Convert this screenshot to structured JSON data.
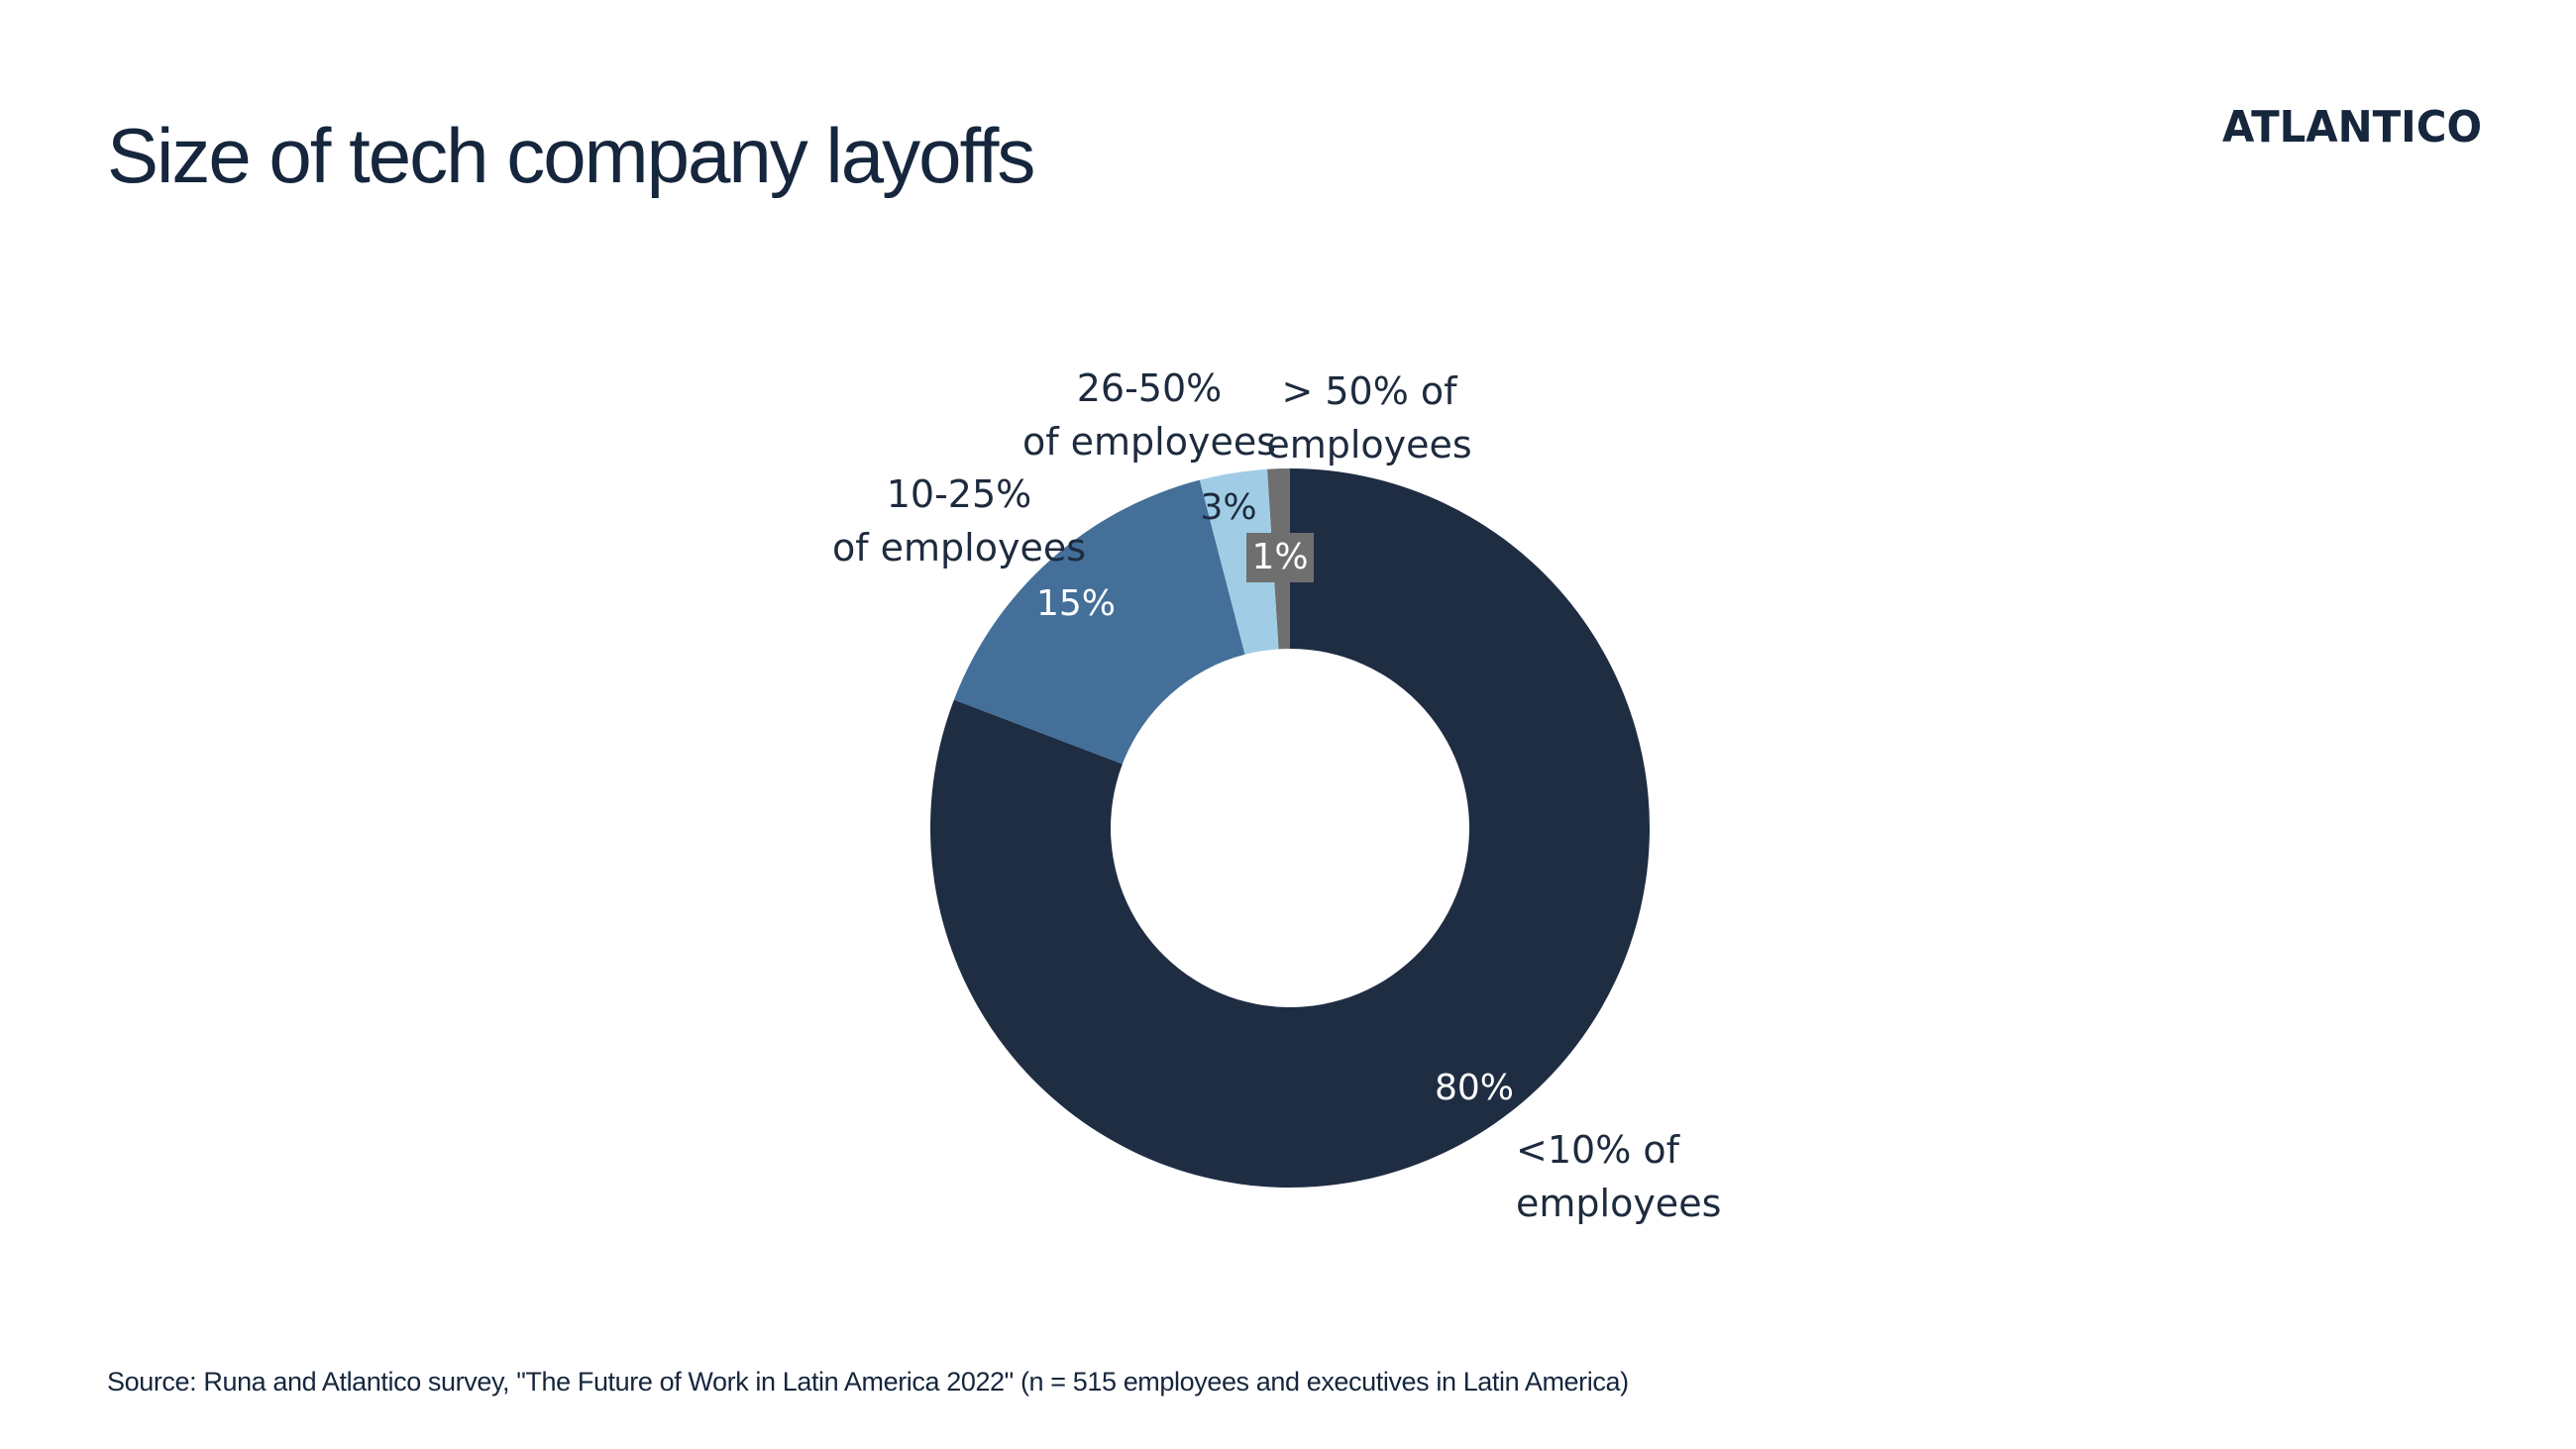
{
  "title": "Size of tech company layoffs",
  "logo_text": "ATLANTICO",
  "source": "Source: Runa and Atlantico survey, \"The Future of Work in Latin America 2022\" (n = 515 employees and executives in Latin America)",
  "colors": {
    "dark_navy": "#1f2d43",
    "steel_blue": "#436f99",
    "light_blue": "#a0cde5",
    "gray": "#6f6f6f",
    "text": "#15263d"
  },
  "chart_data": {
    "type": "pie",
    "donut": true,
    "title": "Size of tech company layoffs",
    "slices": [
      {
        "key": "gt50",
        "label_lines": [
          "> 50% of",
          "employees"
        ],
        "value": 1,
        "value_label": "1%",
        "color": "#6f6f6f",
        "value_text_color": "#ffffff"
      },
      {
        "key": "lt10",
        "label_lines": [
          "<10% of",
          "employees"
        ],
        "value": 80,
        "value_label": "80%",
        "color": "#1f2d43",
        "value_text_color": "#ffffff"
      },
      {
        "key": "p10_25",
        "label_lines": [
          "10-25%",
          "of employees"
        ],
        "value": 15,
        "value_label": "15%",
        "color": "#436f99",
        "value_text_color": "#ffffff"
      },
      {
        "key": "p26_50",
        "label_lines": [
          "26-50%",
          "of employees"
        ],
        "value": 3,
        "value_label": "3%",
        "color": "#a0cde5",
        "value_text_color": "#1e2b3e"
      }
    ]
  }
}
